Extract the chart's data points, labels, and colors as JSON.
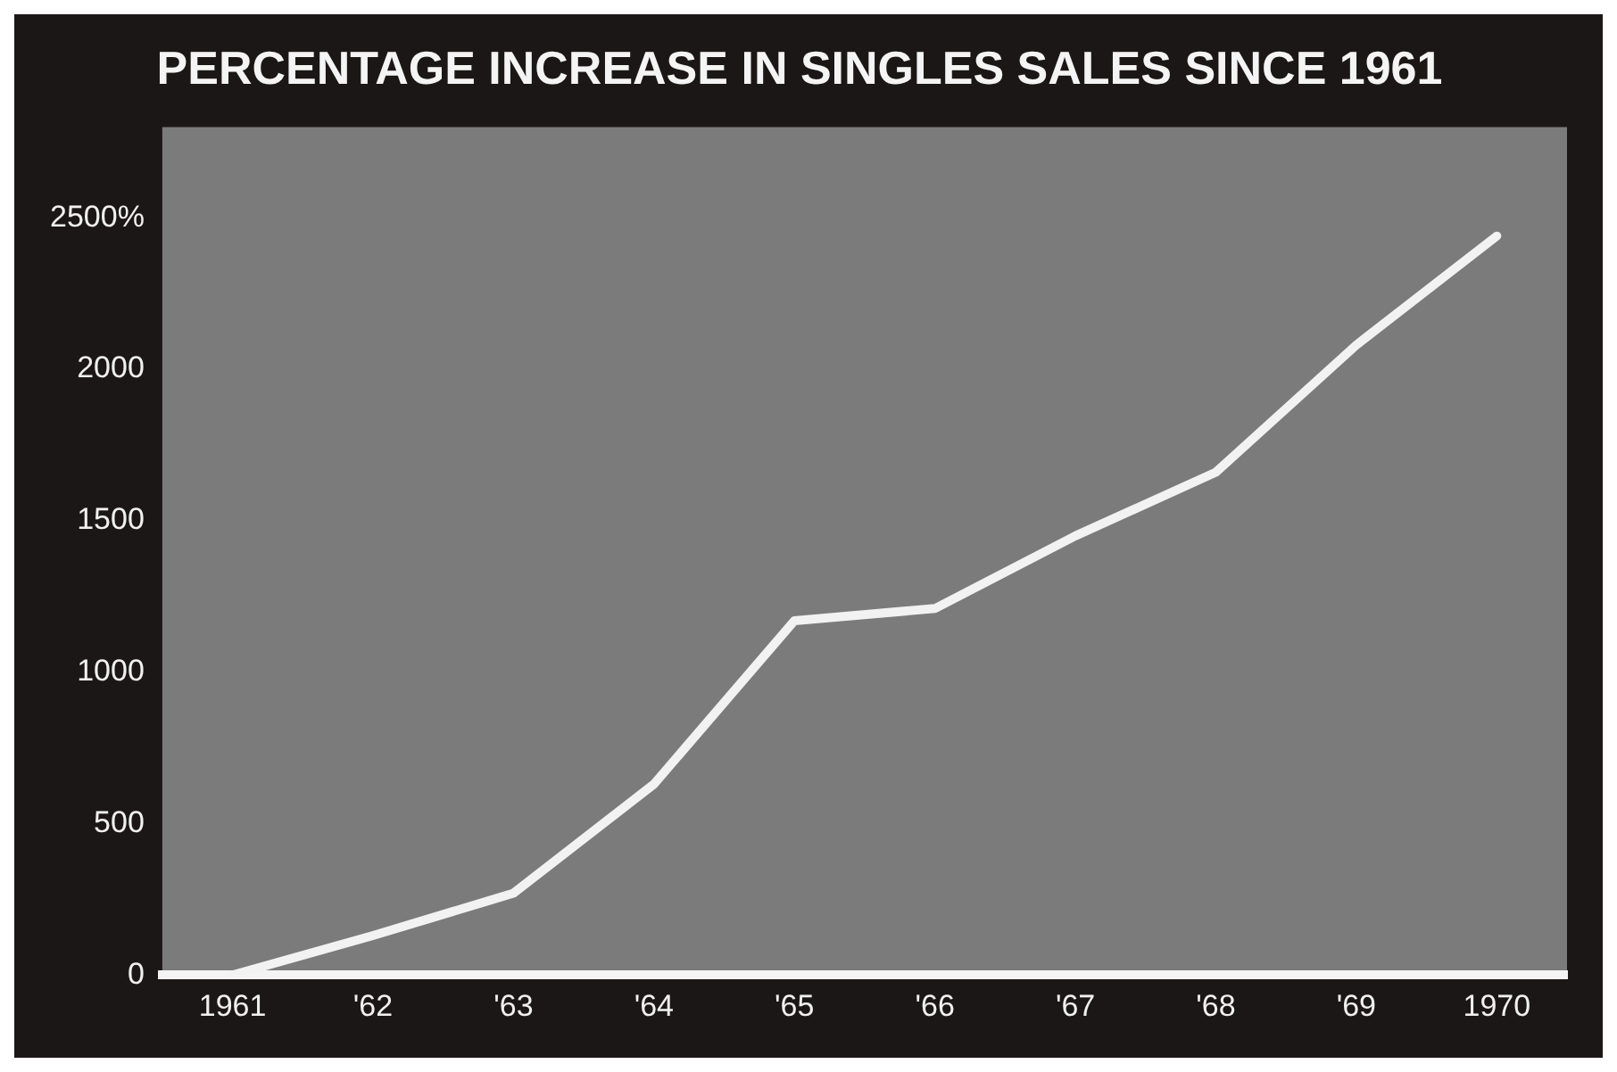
{
  "chart_data": {
    "type": "line",
    "title": "PERCENTAGE INCREASE IN SINGLES SALES SINCE 1961",
    "categories": [
      "1961",
      "'62",
      "'63",
      "'64",
      "'65",
      "'66",
      "'67",
      "'68",
      "'69",
      "1970"
    ],
    "series": [
      {
        "color": "#f2f2f2",
        "values": [
          0,
          130,
          270,
          630,
          1170,
          1210,
          1450,
          1660,
          2080,
          2440
        ]
      }
    ],
    "ylim": [
      0,
      2800
    ],
    "yticks": [
      0,
      500,
      1000,
      1500,
      2000,
      {
        "value": 2500,
        "label": "2500%"
      }
    ],
    "grid": false,
    "legend": false,
    "marker": "none",
    "line_style": "solid"
  }
}
